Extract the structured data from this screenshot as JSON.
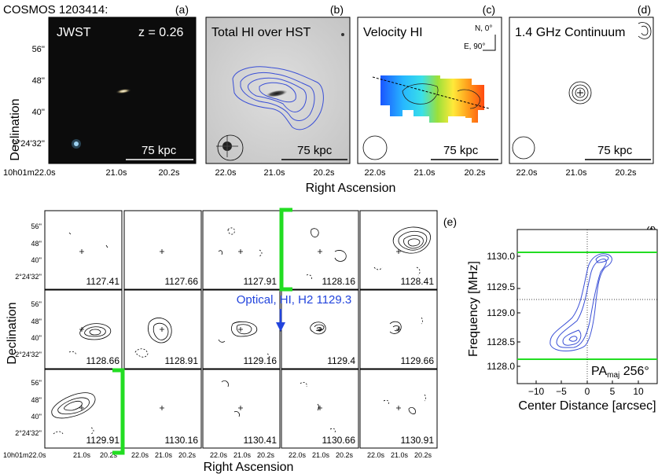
{
  "figure": {
    "object_name": "COSMOS 1203414:",
    "x_axis_label": "Right Ascension",
    "y_axis_label": "Declination",
    "ra_ticks_first": "10h01m22.0s",
    "ra_ticks": [
      "22.0s",
      "21.0s",
      "20.2s"
    ],
    "dec_ticks": [
      "56''",
      "48''",
      "40''",
      "2°24'32''"
    ]
  },
  "top_panels": [
    {
      "tag": "(a)",
      "title": "JWST",
      "redshift": "z = 0.26",
      "scalebar": "75 kpc"
    },
    {
      "tag": "(b)",
      "title": "Total HI over HST",
      "scalebar": "75 kpc"
    },
    {
      "tag": "(c)",
      "title": "Velocity HI",
      "compass_n": "N, 0°",
      "compass_e": "E, 90°",
      "scalebar": "75 kpc"
    },
    {
      "tag": "(d)",
      "title": "1.4 GHz Continuum",
      "scalebar": "75 kpc"
    }
  ],
  "channel_maps": {
    "tag": "(e)",
    "annotation": "Optical, HI, H2 1129.3",
    "channels": [
      "1127.41",
      "1127.66",
      "1127.91",
      "1128.16",
      "1128.41",
      "1128.66",
      "1128.91",
      "1129.16",
      "1129.4",
      "1129.66",
      "1129.91",
      "1130.16",
      "1130.41",
      "1130.66",
      "1130.91"
    ]
  },
  "pv_diagram": {
    "tag": "(f)",
    "pa_prefix": "PA",
    "pa_sub": "maj",
    "pa_value": " 256°",
    "ylabel": "Frequency [MHz]",
    "xlabel": "Center Distance [arcsec]",
    "xticks": [
      "−10",
      "−5",
      "0",
      "5",
      "10"
    ],
    "yticks": [
      "1130.0",
      "1129.5",
      "1129.0",
      "1128.5",
      "1128.0"
    ]
  },
  "colors": {
    "hi_contour": "#3a4fd6",
    "band_green": "#22dd22",
    "annotation_blue": "#2244dd",
    "background": "#ffffff"
  }
}
